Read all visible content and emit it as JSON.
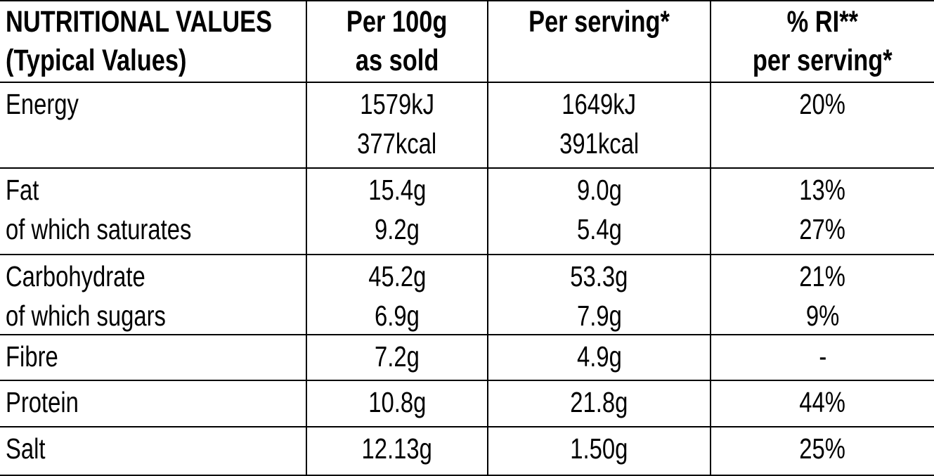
{
  "colors": {
    "background": "#ffffff",
    "text": "#000000",
    "border": "#000000"
  },
  "table": {
    "header": {
      "col1": [
        "NUTRITIONAL VALUES",
        "(Typical Values)"
      ],
      "col2": [
        "Per 100g",
        "as sold"
      ],
      "col3": [
        "Per serving*"
      ],
      "col4": [
        "% RI**",
        "per serving*"
      ]
    },
    "rows": [
      {
        "name": "energy",
        "label": [
          "Energy"
        ],
        "per_100g": [
          "1579kJ",
          "377kcal"
        ],
        "per_serving": [
          "1649kJ",
          "391kcal"
        ],
        "ri_per_serving": [
          "20%"
        ]
      },
      {
        "name": "fat",
        "label": [
          "Fat",
          "of which saturates"
        ],
        "per_100g": [
          "15.4g",
          "9.2g"
        ],
        "per_serving": [
          "9.0g",
          "5.4g"
        ],
        "ri_per_serving": [
          "13%",
          "27%"
        ]
      },
      {
        "name": "carbohydrate",
        "label": [
          "Carbohydrate",
          "of which sugars"
        ],
        "per_100g": [
          "45.2g",
          "6.9g"
        ],
        "per_serving": [
          "53.3g",
          "7.9g"
        ],
        "ri_per_serving": [
          "21%",
          "9%"
        ]
      },
      {
        "name": "fibre",
        "label": [
          "Fibre"
        ],
        "per_100g": [
          "7.2g"
        ],
        "per_serving": [
          "4.9g"
        ],
        "ri_per_serving": [
          "-"
        ]
      },
      {
        "name": "protein",
        "label": [
          "Protein"
        ],
        "per_100g": [
          "10.8g"
        ],
        "per_serving": [
          "21.8g"
        ],
        "ri_per_serving": [
          "44%"
        ]
      },
      {
        "name": "salt",
        "label": [
          "Salt"
        ],
        "per_100g": [
          "12.13g"
        ],
        "per_serving": [
          "1.50g"
        ],
        "ri_per_serving": [
          "25%"
        ]
      }
    ]
  }
}
